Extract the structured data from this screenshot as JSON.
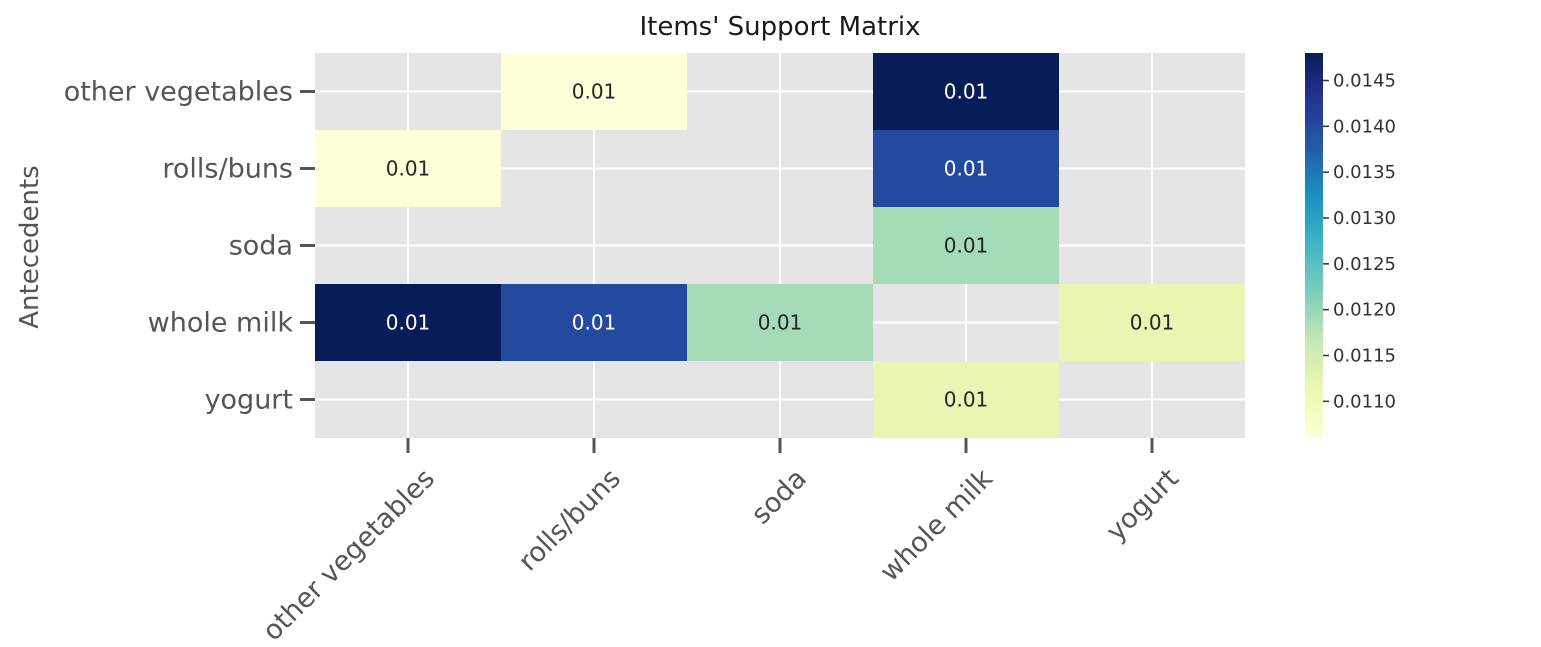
{
  "chart_data": {
    "type": "heatmap",
    "title": "Items' Support Matrix",
    "xlabel": "",
    "ylabel": "Antecedents",
    "x_categories": [
      "other vegetables",
      "rolls/buns",
      "soda",
      "whole milk",
      "yogurt"
    ],
    "y_categories": [
      "other vegetables",
      "rolls/buns",
      "soda",
      "whole milk",
      "yogurt"
    ],
    "values": [
      [
        null,
        0.0106,
        null,
        0.0148,
        null
      ],
      [
        0.0106,
        null,
        null,
        0.014,
        null
      ],
      [
        null,
        null,
        null,
        0.0119,
        null
      ],
      [
        0.0148,
        0.014,
        0.0119,
        null,
        0.0112
      ],
      [
        null,
        null,
        null,
        0.0112,
        null
      ]
    ],
    "annotations": [
      [
        null,
        "0.01",
        null,
        "0.01",
        null
      ],
      [
        "0.01",
        null,
        null,
        "0.01",
        null
      ],
      [
        null,
        null,
        null,
        "0.01",
        null
      ],
      [
        "0.01",
        "0.01",
        "0.01",
        null,
        "0.01"
      ],
      [
        null,
        null,
        null,
        "0.01",
        null
      ]
    ],
    "colormap": "YlGnBu",
    "colorbar": {
      "min": 0.0106,
      "max": 0.0148,
      "ticks": [
        0.011,
        0.0115,
        0.012,
        0.0125,
        0.013,
        0.0135,
        0.014,
        0.0145
      ],
      "tick_labels": [
        "0.0110",
        "0.0115",
        "0.0120",
        "0.0125",
        "0.0130",
        "0.0135",
        "0.0140",
        "0.0145"
      ]
    },
    "grid": true,
    "background_color": "#e5e5e5",
    "grid_color": "#ffffff"
  }
}
